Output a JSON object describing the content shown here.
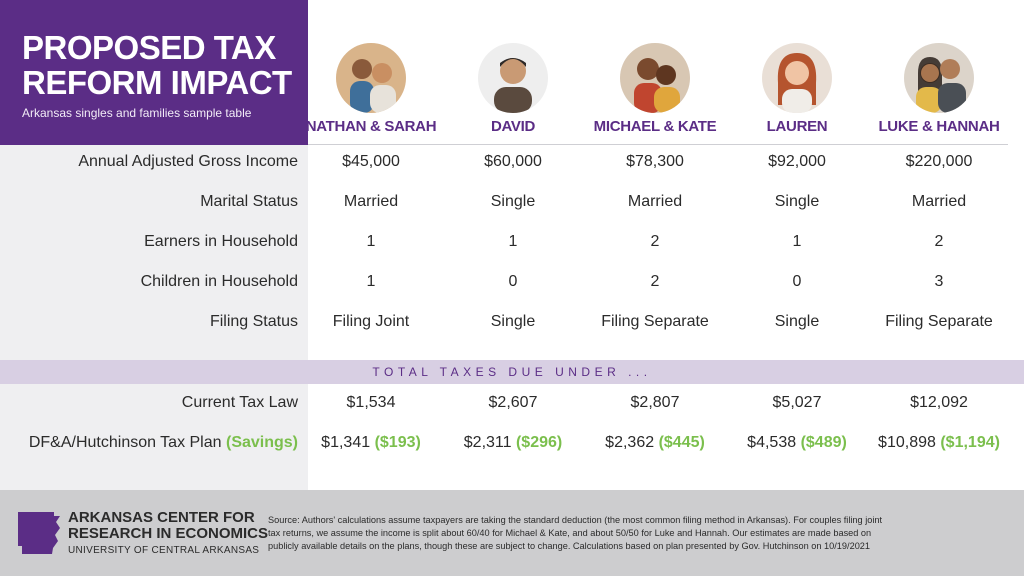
{
  "title": {
    "line1": "PROPOSED TAX",
    "line2": "REFORM IMPACT",
    "subtitle": "Arkansas singles and families sample table"
  },
  "people": [
    {
      "name": "NATHAN & SARAH",
      "icon": "couple-photo"
    },
    {
      "name": "DAVID",
      "icon": "man-photo"
    },
    {
      "name": "MICHAEL & KATE",
      "icon": "couple-photo"
    },
    {
      "name": "LAUREN",
      "icon": "woman-photo"
    },
    {
      "name": "LUKE & HANNAH",
      "icon": "couple-photo"
    }
  ],
  "rows": [
    {
      "label": "Annual Adjusted Gross Income",
      "values": [
        "$45,000",
        "$60,000",
        "$78,300",
        "$92,000",
        "$220,000"
      ]
    },
    {
      "label": "Marital Status",
      "values": [
        "Married",
        "Single",
        "Married",
        "Single",
        "Married"
      ]
    },
    {
      "label": "Earners in Household",
      "values": [
        "1",
        "1",
        "2",
        "1",
        "2"
      ]
    },
    {
      "label": "Children in Household",
      "values": [
        "1",
        "0",
        "2",
        "0",
        "3"
      ]
    },
    {
      "label": "Filing Status",
      "values": [
        "Filing Joint",
        "Single",
        "Filing Separate",
        "Single",
        "Filing Separate"
      ]
    }
  ],
  "band": "TOTAL TAXES DUE UNDER ...",
  "tax_rows": {
    "current": {
      "label": "Current Tax Law",
      "values": [
        "$1,534",
        "$2,607",
        "$2,807",
        "$5,027",
        "$12,092"
      ]
    },
    "plan": {
      "label": "DF&A/Hutchinson Tax Plan",
      "label_savings": "(Savings)",
      "values": [
        "$1,341",
        "$2,311",
        "$2,362",
        "$4,538",
        "$10,898"
      ],
      "savings": [
        "($193)",
        "($296)",
        "($445)",
        "($489)",
        "($1,194)"
      ]
    }
  },
  "footer": {
    "logo_line1": "ARKANSAS CENTER FOR",
    "logo_line2": "RESEARCH IN ECONOMICS",
    "logo_line3": "UNIVERSITY OF CENTRAL ARKANSAS",
    "logo_icon": "arkansas-state-shape",
    "source_line1": "Source: Authors' calculations assume taxpayers are taking the standard deduction (the most common filing method in Arkansas). For couples filing joint",
    "source_line2": "tax returns, we assume the income is split about 60/40 for Michael & Kate, and about 50/50 for Luke and Hannah. Our estimates are made based on",
    "source_line3": "publicly available details on the plans, though these are subject to change.   Calculations based on plan presented by Gov. Hutchinson on 10/19/2021"
  },
  "colors": {
    "purple": "#5b2d86",
    "savings_green": "#7bbf4d",
    "band": "#d8cfe3",
    "footer": "#cdcdcf"
  }
}
